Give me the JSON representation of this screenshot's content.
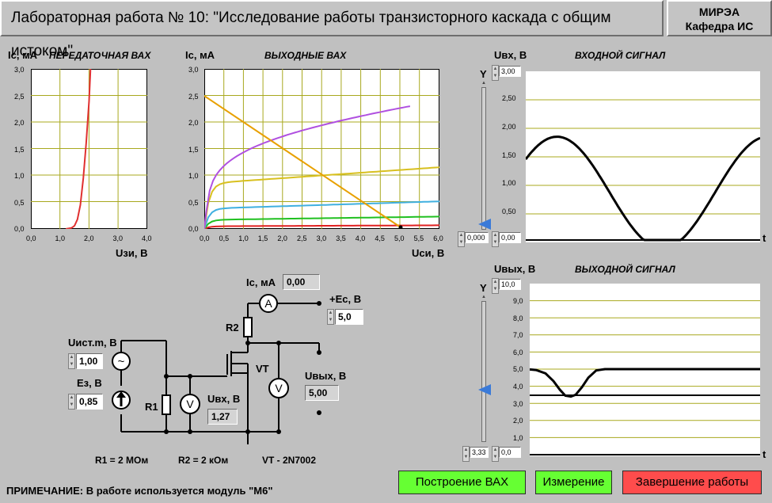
{
  "header": {
    "title": "Лабораторная работа № 10: \"Исследование работы транзисторного каскада с общим истоком\"",
    "org_line1": "МИРЭА",
    "org_line2": "Кафедра ИС"
  },
  "transfer_chart": {
    "ylabel": "Ic, мА",
    "title": "ПЕРЕДАТОЧНАЯ ВАХ",
    "xlabel": "Uзи, В",
    "yticks": [
      "3,0",
      "2,5",
      "2,0",
      "1,5",
      "1,0",
      "0,5",
      "0,0"
    ],
    "xticks": [
      "0,0",
      "1,0",
      "2,0",
      "3,0",
      "4,0"
    ]
  },
  "output_chart": {
    "ylabel": "Ic, мА",
    "title": "ВЫХОДНЫЕ ВАХ",
    "xlabel": "Uси, В",
    "yticks": [
      "3,0",
      "2,5",
      "2,0",
      "1,5",
      "1,0",
      "0,5",
      "0,0"
    ],
    "xticks": [
      "0,0",
      "0,5",
      "1,0",
      "1,5",
      "2,0",
      "2,5",
      "3,0",
      "3,5",
      "4,0",
      "4,5",
      "5,0",
      "5,5",
      "6,0"
    ]
  },
  "input_chart": {
    "ylabel": "Uвх, В",
    "title": "ВХОДНОЙ СИГНАЛ",
    "axis_y": "Y",
    "axis_t": "t",
    "ymax_value": "3,00",
    "ymin_value": "0,00",
    "slider_value": "0,000",
    "yticks": [
      "2,50",
      "2,00",
      "1,50",
      "1,00",
      "0,50"
    ]
  },
  "output_signal_chart": {
    "ylabel": "Uвых, В",
    "title": "ВЫХОДНОЙ СИГНАЛ",
    "axis_y": "Y",
    "axis_t": "t",
    "ymax_value": "10,0",
    "ymin_value": "0,0",
    "slider_value": "3,33",
    "yticks": [
      "9,0",
      "8,0",
      "7,0",
      "6,0",
      "5,0",
      "4,0",
      "3,0",
      "2,0",
      "1,0"
    ]
  },
  "circuit": {
    "ic_label": "Ic, мА",
    "ic_value": "0,00",
    "ec_label": "+Ec, В",
    "ec_value": "5,0",
    "uist_label": "Uист.m, В",
    "uist_value": "1,00",
    "ez_label": "Eз, В",
    "ez_value": "0,85",
    "uvx_label": "Uвх, В",
    "uvx_value": "1,27",
    "uvyx_label": "Uвых, В",
    "uvyx_value": "5,00",
    "r1": "R1",
    "r2": "R2",
    "vt": "VT",
    "ammeter": "A",
    "voltmeter": "V",
    "source_ac": "~",
    "r1_value": "R1 = 2 МОм",
    "r2_value": "R2 =  2 кОм",
    "vt_value": "VT - 2N7002"
  },
  "footer": {
    "note": "ПРИМЕЧАНИЕ: В работе используется модуль \"М6\"",
    "btn_build": "Построение ВАХ",
    "btn_measure": "Измерение",
    "btn_finish": "Завершение работы"
  },
  "colors": {
    "grid": "#a8a81e",
    "transfer_curve": "#e03030",
    "load_line": "#e8a000",
    "curve_purple": "#b050e0",
    "curve_yellow": "#d8c020",
    "curve_cyan": "#40b0e0",
    "curve_green": "#20c020",
    "curve_red": "#e02020",
    "btn_green": "#66ff33",
    "btn_red": "#ff4c4c",
    "slider_blue": "#3a7ad8"
  }
}
